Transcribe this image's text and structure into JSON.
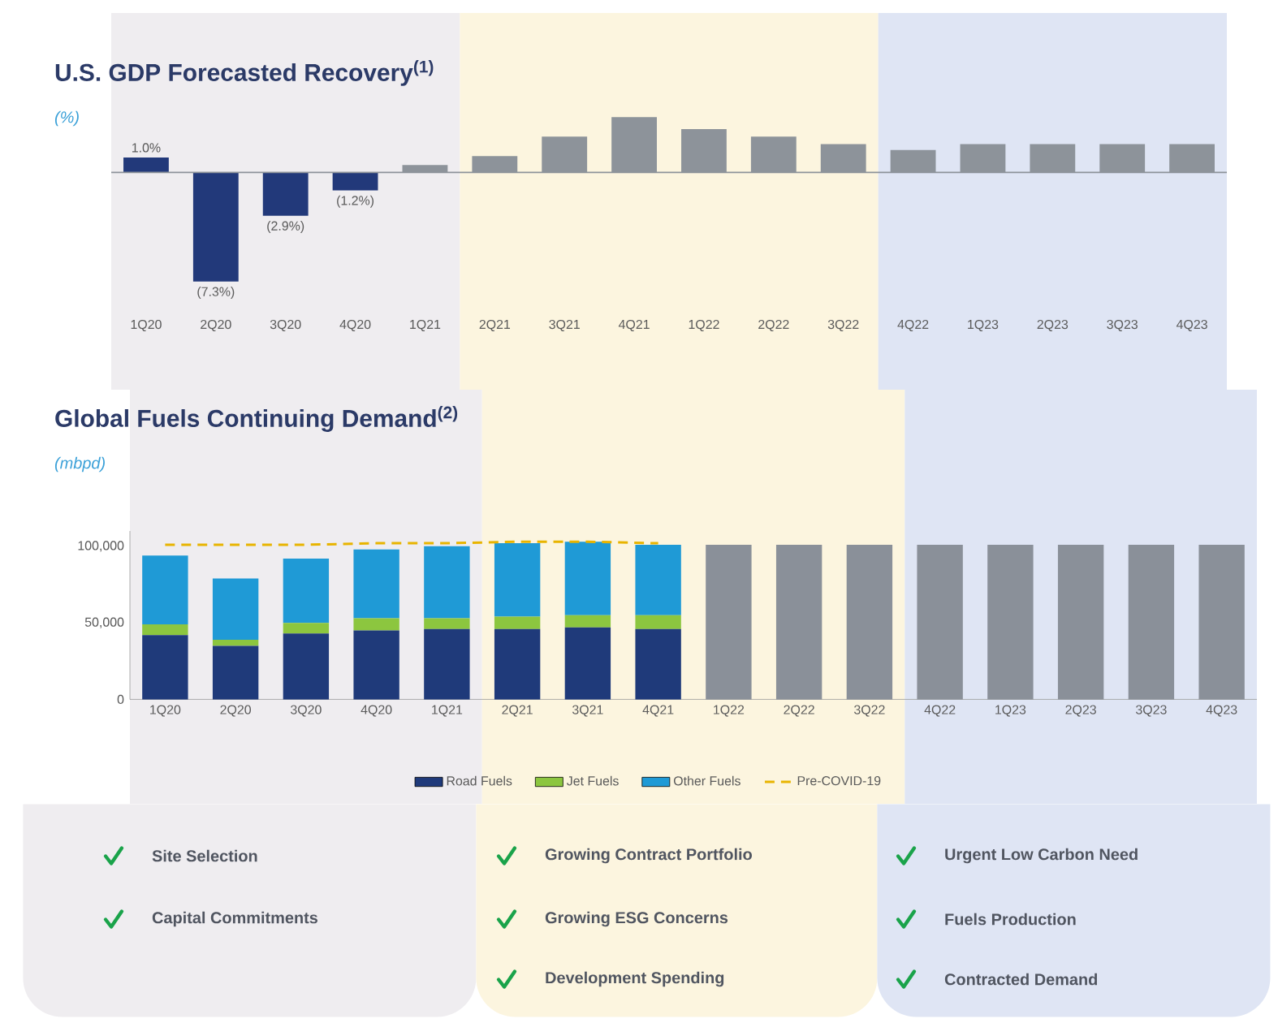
{
  "chart_data": [
    {
      "type": "bar",
      "title": "U.S. GDP Forecasted Recovery$^{(1)}$",
      "subtitle": "(%)",
      "categories": [
        "1Q20",
        "2Q20",
        "3Q20",
        "4Q20",
        "1Q21",
        "2Q21",
        "3Q21",
        "4Q21",
        "1Q22",
        "2Q22",
        "3Q22",
        "4Q22",
        "1Q23",
        "2Q23",
        "3Q23",
        "4Q23"
      ],
      "values": [
        1.0,
        -7.3,
        -2.9,
        -1.2,
        0.5,
        1.1,
        2.4,
        3.7,
        2.9,
        2.4,
        1.9,
        1.5,
        1.9,
        1.9,
        1.9,
        1.9
      ],
      "colors": [
        "#22397a",
        "#22397a",
        "#22397a",
        "#22397a",
        "#8d939a",
        "#8d939a",
        "#8d939a",
        "#8d939a",
        "#8d939a",
        "#8d939a",
        "#8d939a",
        "#8d939a",
        "#8d939a",
        "#8d939a",
        "#8d939a",
        "#8d939a"
      ],
      "value_labels": [
        "1.0%",
        "(7.3%)",
        "(2.9%)",
        "(1.2%)",
        null,
        null,
        null,
        null,
        null,
        null,
        null,
        null,
        null,
        null,
        null,
        null
      ],
      "tick_labels": "x",
      "bands": [
        {
          "axis": "x",
          "from": "1Q20",
          "to": "1Q21",
          "color": "#efedf0"
        },
        {
          "axis": "x",
          "from": "2Q21",
          "to": "3Q22",
          "color": "#fcf5df"
        },
        {
          "axis": "x",
          "from": "4Q22",
          "to": "4Q23",
          "color": "#dfe5f4"
        }
      ]
    },
    {
      "type": "bar",
      "title": "Global Fuels Continuing Demand$^{(2)}$",
      "subtitle": "(mbpd)",
      "stacked": true,
      "categories": [
        "1Q20",
        "2Q20",
        "3Q20",
        "4Q20",
        "1Q21",
        "2Q21",
        "3Q21",
        "4Q21",
        "1Q22",
        "2Q22",
        "3Q22",
        "4Q22",
        "1Q23",
        "2Q23",
        "3Q23",
        "4Q23"
      ],
      "series": [
        {
          "name": "Road Fuels",
          "color": "#1f3a7a",
          "values": [
            42000,
            35000,
            43000,
            45000,
            46000,
            46000,
            47000,
            46000,
            null,
            null,
            null,
            null,
            null,
            null,
            null,
            null
          ]
        },
        {
          "name": "Jet Fuels",
          "color": "#8cc63f",
          "values": [
            7000,
            4000,
            7000,
            8000,
            7000,
            8000,
            8000,
            9000,
            null,
            null,
            null,
            null,
            null,
            null,
            null,
            null
          ]
        },
        {
          "name": "Other Fuels",
          "color": "#1f9ad6",
          "values": [
            45000,
            40000,
            42000,
            45000,
            47000,
            48000,
            48000,
            46000,
            null,
            null,
            null,
            null,
            null,
            null,
            null,
            null
          ]
        },
        {
          "color": "#8a9099",
          "values": [
            null,
            null,
            null,
            null,
            null,
            null,
            null,
            null,
            101000,
            101000,
            101000,
            101000,
            101000,
            101000,
            101000,
            101000
          ]
        },
        {
          "name": "Pre-COVID-19",
          "type": "line",
          "line_style": "dashed",
          "color": "#e8b400",
          "values": [
            101000,
            101000,
            101000,
            102000,
            102000,
            103000,
            103000,
            102000,
            null,
            null,
            null,
            null,
            null,
            null,
            null,
            null
          ]
        }
      ],
      "ylim": [
        0,
        110000
      ],
      "yticks": [
        0,
        {
          "value": 50000,
          "label": "50,000"
        },
        {
          "value": 100000,
          "label": "100,000"
        }
      ],
      "legend": "bottom",
      "bands": [
        {
          "axis": "x",
          "from": "1Q20",
          "to": "1Q21",
          "color": "#efedf0"
        },
        {
          "axis": "x",
          "from": "2Q21",
          "to": "3Q22",
          "color": "#fcf5df"
        },
        {
          "axis": "x",
          "from": "4Q22",
          "to": "4Q23",
          "color": "#dfe5f4"
        }
      ]
    },
    {
      "type": "other",
      "annotations": [
        "Site Selection",
        "Growing Contract Portfolio",
        "Urgent Low Carbon Need",
        "Capital Commitments",
        "Growing ESG Concerns",
        "Fuels Production",
        null,
        "Development Spending",
        "Contracted Demand"
      ]
    }
  ]
}
